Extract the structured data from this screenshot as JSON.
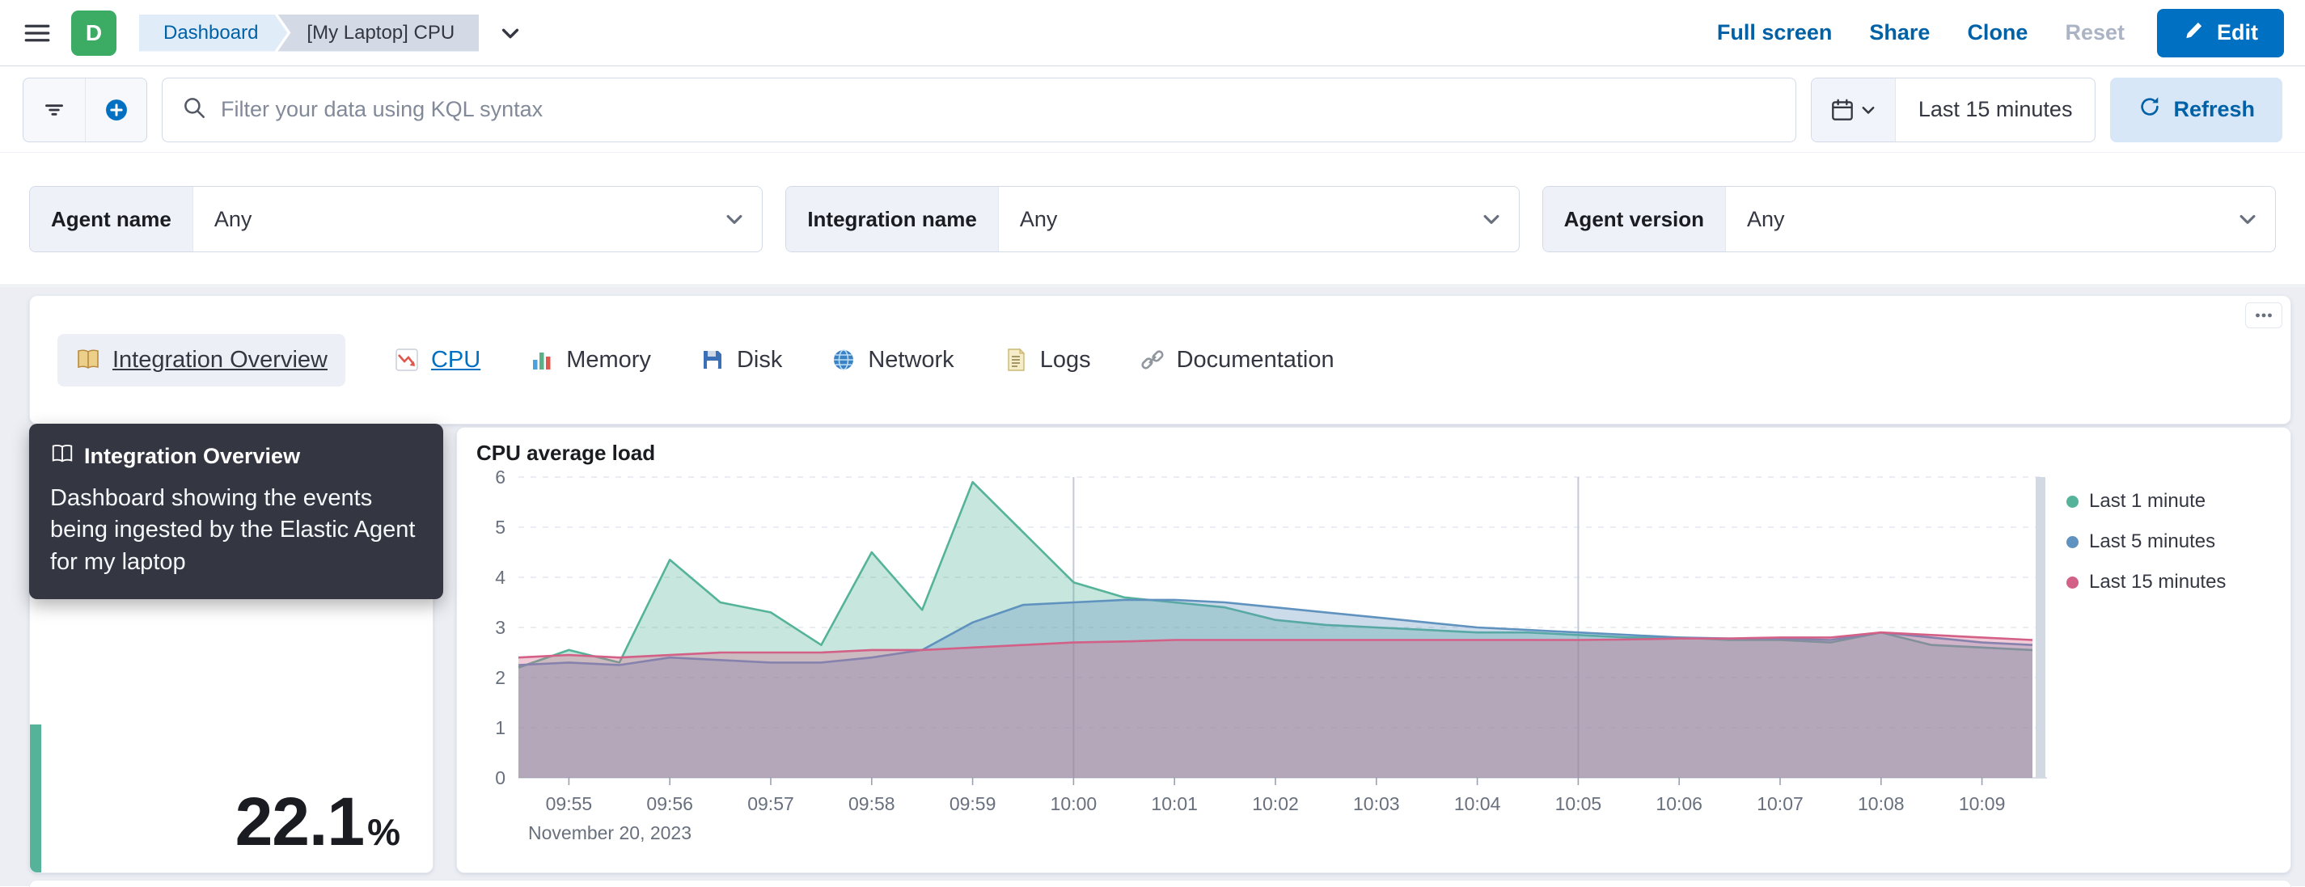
{
  "header": {
    "space_initial": "D",
    "space_color": "#3CAB63",
    "breadcrumbs": [
      {
        "label": "Dashboard"
      },
      {
        "label": "[My Laptop] CPU"
      }
    ],
    "actions": [
      {
        "label": "Full screen",
        "disabled": false
      },
      {
        "label": "Share",
        "disabled": false
      },
      {
        "label": "Clone",
        "disabled": false
      },
      {
        "label": "Reset",
        "disabled": true
      }
    ],
    "edit_button": "Edit"
  },
  "toolbar": {
    "search_placeholder": "Filter your data using KQL syntax",
    "time_range": "Last 15 minutes",
    "refresh_label": "Refresh"
  },
  "filters": [
    {
      "label": "Agent name",
      "value": "Any"
    },
    {
      "label": "Integration name",
      "value": "Any"
    },
    {
      "label": "Agent version",
      "value": "Any"
    }
  ],
  "nav_links": [
    {
      "icon": "book-icon",
      "label": "Integration Overview",
      "state": "hover"
    },
    {
      "icon": "line-chart-icon",
      "label": "CPU",
      "state": "active"
    },
    {
      "icon": "bar-chart-icon",
      "label": "Memory",
      "state": ""
    },
    {
      "icon": "floppy-disk-icon",
      "label": "Disk",
      "state": ""
    },
    {
      "icon": "globe-icon",
      "label": "Network",
      "state": ""
    },
    {
      "icon": "document-icon",
      "label": "Logs",
      "state": ""
    },
    {
      "icon": "link-icon",
      "label": "Documentation",
      "state": ""
    }
  ],
  "tooltip": {
    "icon": "book-icon",
    "title": "Integration Overview",
    "body": "Dashboard showing the events being ingested by the Elastic Agent for my laptop"
  },
  "metric": {
    "value": "22.1",
    "unit": "%",
    "accent_color": "#54B399"
  },
  "chart_data": {
    "type": "area",
    "title": "CPU average load",
    "x_label_date": "November 20, 2023",
    "x_times": [
      "09:54:30",
      "09:55:00",
      "09:55:30",
      "09:56:00",
      "09:56:30",
      "09:57:00",
      "09:57:30",
      "09:58:00",
      "09:58:30",
      "09:59:00",
      "09:59:30",
      "10:00:00",
      "10:00:30",
      "10:01:00",
      "10:01:30",
      "10:02:00",
      "10:02:30",
      "10:03:00",
      "10:03:30",
      "10:04:00",
      "10:04:30",
      "10:05:00",
      "10:05:30",
      "10:06:00",
      "10:06:30",
      "10:07:00",
      "10:07:30",
      "10:08:00",
      "10:08:30",
      "10:09:00",
      "10:09:30"
    ],
    "x_ticks": [
      "09:55",
      "09:56",
      "09:57",
      "09:58",
      "09:59",
      "10:00",
      "10:01",
      "10:02",
      "10:03",
      "10:04",
      "10:05",
      "10:06",
      "10:07",
      "10:08",
      "10:09"
    ],
    "emphasized_gridlines": [
      "10:00",
      "10:05"
    ],
    "ylim": [
      0,
      6
    ],
    "y_ticks": [
      0,
      1,
      2,
      3,
      4,
      5,
      6
    ],
    "legend_position": "right",
    "grid": true,
    "series": [
      {
        "name": "Last 1 minute",
        "color": "#54B399",
        "values": [
          2.2,
          2.55,
          2.3,
          4.35,
          3.5,
          3.3,
          2.65,
          4.5,
          3.35,
          5.9,
          4.9,
          3.9,
          3.6,
          3.5,
          3.4,
          3.15,
          3.05,
          3.0,
          2.95,
          2.9,
          2.9,
          2.85,
          2.8,
          2.8,
          2.75,
          2.75,
          2.7,
          2.9,
          2.65,
          2.6,
          2.55
        ]
      },
      {
        "name": "Last 5 minutes",
        "color": "#6092C0",
        "values": [
          2.25,
          2.3,
          2.25,
          2.4,
          2.35,
          2.3,
          2.3,
          2.4,
          2.55,
          3.1,
          3.45,
          3.5,
          3.55,
          3.55,
          3.5,
          3.4,
          3.3,
          3.2,
          3.1,
          3.0,
          2.95,
          2.9,
          2.85,
          2.8,
          2.78,
          2.78,
          2.75,
          2.9,
          2.8,
          2.7,
          2.65
        ]
      },
      {
        "name": "Last 15 minutes",
        "color": "#D36086",
        "values": [
          2.4,
          2.45,
          2.4,
          2.45,
          2.5,
          2.5,
          2.5,
          2.55,
          2.55,
          2.6,
          2.65,
          2.7,
          2.72,
          2.75,
          2.75,
          2.75,
          2.75,
          2.75,
          2.75,
          2.75,
          2.75,
          2.75,
          2.76,
          2.78,
          2.78,
          2.8,
          2.8,
          2.9,
          2.85,
          2.8,
          2.75
        ]
      }
    ]
  }
}
